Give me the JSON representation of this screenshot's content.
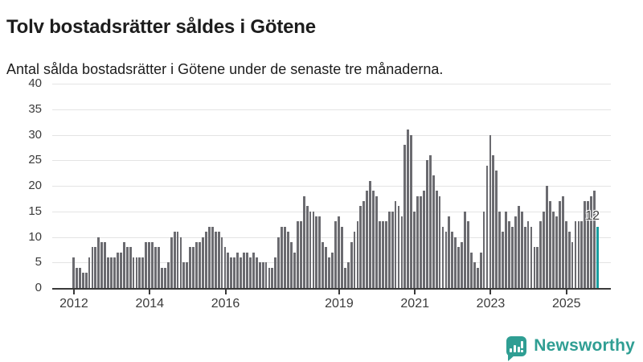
{
  "header": {
    "title": "Tolv bostadsrätter såldes i Götene",
    "subtitle": "Antal sålda bostadsrätter i Götene under de senaste tre månaderna."
  },
  "chart_data": {
    "type": "bar",
    "title": "Tolv bostadsrätter såldes i Götene",
    "xlabel": "",
    "ylabel": "",
    "ylim": [
      0,
      40
    ],
    "yticks": [
      0,
      5,
      10,
      15,
      20,
      25,
      30,
      35,
      40
    ],
    "grid": true,
    "x_start_month": "2012-01",
    "x_end_month": "2025-11",
    "year_ticks": [
      {
        "label": "2012",
        "month_index": 0
      },
      {
        "label": "2014",
        "month_index": 24
      },
      {
        "label": "2016",
        "month_index": 48
      },
      {
        "label": "2019",
        "month_index": 84
      },
      {
        "label": "2021",
        "month_index": 108
      },
      {
        "label": "2023",
        "month_index": 132
      },
      {
        "label": "2025",
        "month_index": 156
      }
    ],
    "values": [
      6,
      4,
      4,
      3,
      3,
      6,
      8,
      8,
      10,
      9,
      9,
      6,
      6,
      6,
      7,
      7,
      9,
      8,
      8,
      6,
      6,
      6,
      6,
      9,
      9,
      9,
      8,
      8,
      4,
      4,
      5,
      10,
      11,
      11,
      10,
      5,
      5,
      8,
      8,
      9,
      9,
      10,
      11,
      12,
      12,
      11,
      11,
      10,
      8,
      7,
      6,
      6,
      7,
      6,
      7,
      7,
      6,
      7,
      6,
      5,
      5,
      5,
      4,
      4,
      6,
      10,
      12,
      12,
      11,
      9,
      7,
      13,
      13,
      18,
      16,
      15,
      15,
      14,
      14,
      9,
      8,
      6,
      7,
      13,
      14,
      12,
      4,
      5,
      9,
      11,
      13,
      16,
      17,
      19,
      21,
      19,
      18,
      13,
      13,
      13,
      15,
      15,
      17,
      16,
      14,
      28,
      31,
      30,
      15,
      18,
      18,
      19,
      25,
      26,
      22,
      19,
      18,
      12,
      11,
      14,
      11,
      10,
      8,
      9,
      15,
      13,
      7,
      5,
      4,
      7,
      15,
      24,
      30,
      26,
      23,
      15,
      11,
      15,
      13,
      12,
      14,
      16,
      15,
      12,
      13,
      12,
      8,
      8,
      13,
      15,
      20,
      17,
      15,
      14,
      17,
      18,
      13,
      11,
      9,
      13,
      13,
      13,
      17,
      17,
      18,
      19,
      12
    ],
    "bar_color": "#6b6b70",
    "highlight": {
      "index_from_end": 1,
      "value": 12,
      "label": "12",
      "color": "#189ea0"
    },
    "legend_position": "none"
  },
  "annotation": {
    "last_value_label": "12"
  },
  "branding": {
    "name": "Newsworthy",
    "icon": "newsworthy-chart-bubble-icon",
    "color": "#2f9e93"
  },
  "colors": {
    "background": "#ffffff",
    "text": "#1d1d1d",
    "axis_text": "#3b3b3b",
    "gridline": "#e4e4e4",
    "baseline": "#3a3a3a",
    "bar": "#6b6b70",
    "highlight": "#189ea0",
    "brand": "#2f9e93"
  }
}
